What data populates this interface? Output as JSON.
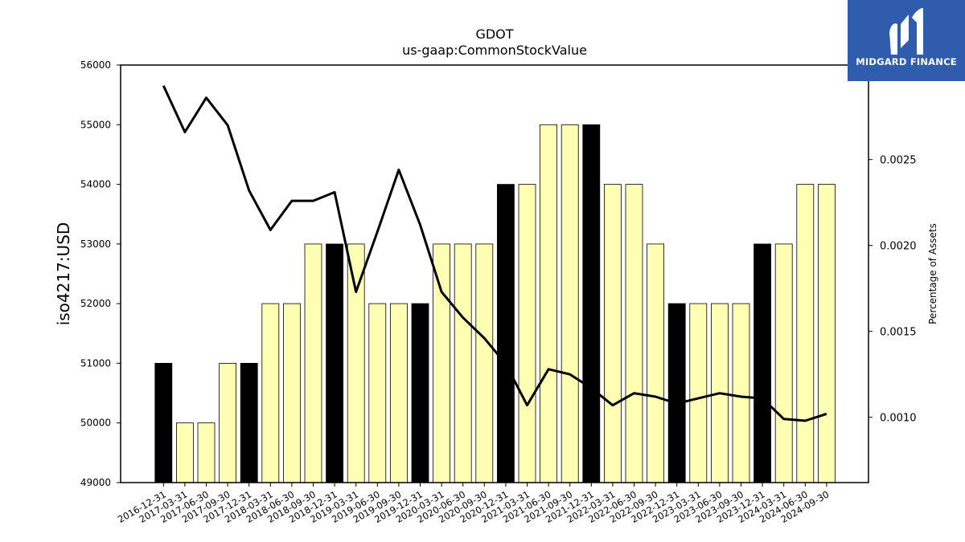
{
  "brand": {
    "name": "MIDGARD FINANCE",
    "colors": {
      "background": "#2f5cad",
      "text": "#ffffff"
    }
  },
  "chart_data": {
    "type": "bar",
    "title": "GDOT",
    "subtitle": "us-gaap:CommonStockValue",
    "ylabel": "iso4217:USD",
    "y2label": "Percentage of Assets",
    "ylim": [
      49000,
      56000
    ],
    "y2lim": [
      0.00062,
      0.00305
    ],
    "yticks": [
      49000,
      50000,
      51000,
      52000,
      53000,
      54000,
      55000,
      56000
    ],
    "y2ticks": [
      0.001,
      0.0015,
      0.002,
      0.0025
    ],
    "y2tick_labels": [
      "0.0010",
      "0.0015",
      "0.0020",
      "0.0025"
    ],
    "categories": [
      "2016-12-31",
      "2017-03-31",
      "2017-06-30",
      "2017-09-30",
      "2017-12-31",
      "2018-03-31",
      "2018-06-30",
      "2018-09-30",
      "2018-12-31",
      "2019-03-31",
      "2019-06-30",
      "2019-09-30",
      "2019-12-31",
      "2020-03-31",
      "2020-06-30",
      "2020-09-30",
      "2020-12-31",
      "2021-03-31",
      "2021-06-30",
      "2021-09-30",
      "2021-12-31",
      "2022-03-31",
      "2022-06-30",
      "2022-09-30",
      "2022-12-31",
      "2023-03-31",
      "2023-06-30",
      "2023-09-30",
      "2023-12-31",
      "2024-03-31",
      "2024-06-30",
      "2024-09-30"
    ],
    "series": [
      {
        "type": "bar",
        "values": [
          51000,
          50000,
          50000,
          51000,
          51000,
          52000,
          52000,
          53000,
          53000,
          53000,
          52000,
          52000,
          52000,
          53000,
          53000,
          53000,
          54000,
          54000,
          55000,
          55000,
          55000,
          54000,
          54000,
          53000,
          52000,
          52000,
          52000,
          52000,
          53000,
          53000,
          54000,
          54000
        ],
        "highlight": [
          true,
          false,
          false,
          false,
          true,
          false,
          false,
          false,
          true,
          false,
          false,
          false,
          true,
          false,
          false,
          false,
          true,
          false,
          false,
          false,
          true,
          false,
          false,
          false,
          true,
          false,
          false,
          false,
          true,
          false,
          false,
          false
        ],
        "color": "#ffffb3",
        "highlight_color": "#000000"
      },
      {
        "type": "line",
        "axis": "right",
        "values": [
          0.00293,
          0.00266,
          0.00286,
          0.0027,
          0.00232,
          0.00209,
          0.00226,
          0.00226,
          0.00231,
          0.00173,
          0.00208,
          0.00244,
          0.00212,
          0.00173,
          0.00158,
          0.00146,
          0.00131,
          0.00107,
          0.00128,
          0.00125,
          0.00117,
          0.00107,
          0.00114,
          0.00112,
          0.00108,
          0.00111,
          0.00114,
          0.00112,
          0.00111,
          0.00099,
          0.00098,
          0.00102
        ],
        "color": "#000000"
      }
    ],
    "grid": false,
    "legend": "none"
  }
}
